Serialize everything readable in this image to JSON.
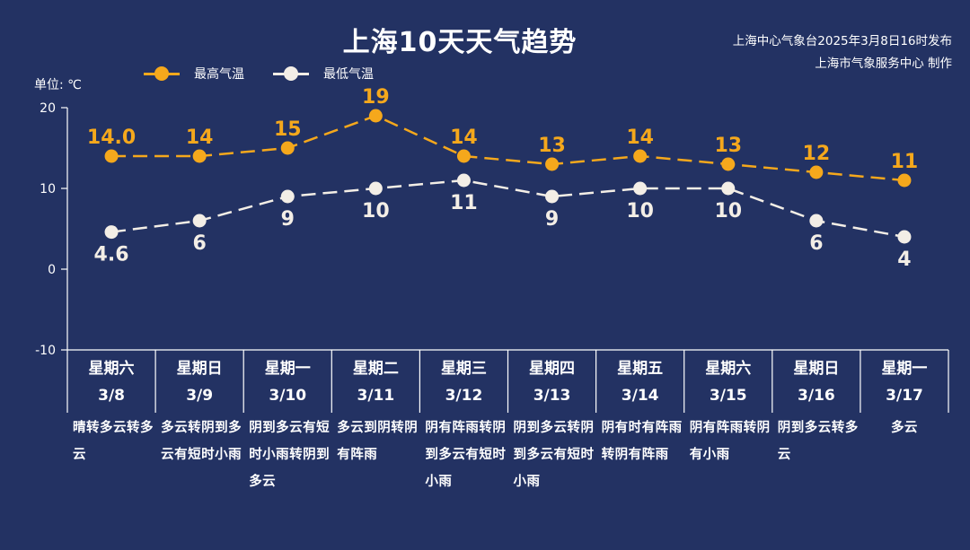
{
  "title": "上海10天天气趋势",
  "publisher": {
    "line1": "上海中心气象台2025年3月8日16时发布",
    "line2": "上海市气象服务中心 制作"
  },
  "unit_label": "单位: ℃",
  "colors": {
    "background": "#233263",
    "high": "#F5A81C",
    "low": "#F3EEE6",
    "axis": "#FFFFFF"
  },
  "legend": [
    {
      "label": "最高气温",
      "color": "#F5A81C"
    },
    {
      "label": "最低气温",
      "color": "#F3EEE6"
    }
  ],
  "days": [
    {
      "weekday": "星期六",
      "date": "3/8",
      "weather": "晴转多云转多云"
    },
    {
      "weekday": "星期日",
      "date": "3/9",
      "weather": "多云转阴到多云有短时小雨"
    },
    {
      "weekday": "星期一",
      "date": "3/10",
      "weather": "阴到多云有短时小雨转阴到多云"
    },
    {
      "weekday": "星期二",
      "date": "3/11",
      "weather": "多云到阴转阴有阵雨"
    },
    {
      "weekday": "星期三",
      "date": "3/12",
      "weather": "阴有阵雨转阴到多云有短时小雨"
    },
    {
      "weekday": "星期四",
      "date": "3/13",
      "weather": "阴到多云转阴到多云有短时小雨"
    },
    {
      "weekday": "星期五",
      "date": "3/14",
      "weather": "阴有时有阵雨转阴有阵雨"
    },
    {
      "weekday": "星期六",
      "date": "3/15",
      "weather": "阴有阵雨转阴有小雨"
    },
    {
      "weekday": "星期日",
      "date": "3/16",
      "weather": "阴到多云转多云"
    },
    {
      "weekday": "星期一",
      "date": "3/17",
      "weather": "多云"
    }
  ],
  "chart_data": {
    "type": "line",
    "title": "上海10天天气趋势",
    "xlabel": "",
    "ylabel": "单位: ℃",
    "categories": [
      "3/8",
      "3/9",
      "3/10",
      "3/11",
      "3/12",
      "3/13",
      "3/14",
      "3/15",
      "3/16",
      "3/17"
    ],
    "series": [
      {
        "name": "最高气温",
        "values": [
          14.0,
          14,
          15,
          19,
          14,
          13,
          14,
          13,
          12,
          11
        ],
        "labels": [
          "14.0",
          "14",
          "15",
          "19",
          "14",
          "13",
          "14",
          "13",
          "12",
          "11"
        ],
        "color": "#F5A81C",
        "style": "dashed"
      },
      {
        "name": "最低气温",
        "values": [
          4.6,
          6,
          9,
          10,
          11,
          9,
          10,
          10,
          6,
          4
        ],
        "labels": [
          "4.6",
          "6",
          "9",
          "10",
          "11",
          "9",
          "10",
          "10",
          "6",
          "4"
        ],
        "color": "#F3EEE6",
        "style": "dashed"
      }
    ],
    "ylim": [
      -10,
      20
    ],
    "yticks": [
      -10,
      0,
      10,
      20
    ],
    "grid": false,
    "legend_position": "top"
  }
}
